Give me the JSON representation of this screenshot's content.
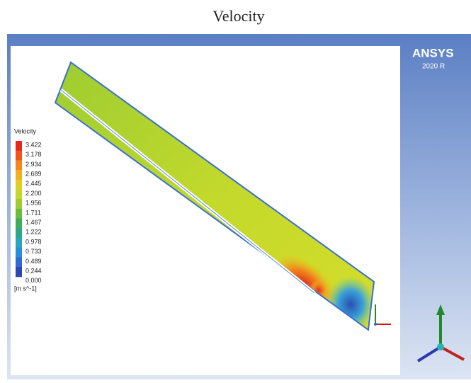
{
  "title": "Velocity",
  "legend": {
    "title": "Velocity",
    "labels": [
      "3.422",
      "3.178",
      "2.934",
      "2.689",
      "2.445",
      "2.200",
      "1.956",
      "1.711",
      "1.467",
      "1.222",
      "0.978",
      "0.733",
      "0.489",
      "0.244",
      "0.000"
    ],
    "unit": "[m s^-1]"
  },
  "logo": {
    "name": "ANSYS",
    "version": "2020 R"
  }
}
